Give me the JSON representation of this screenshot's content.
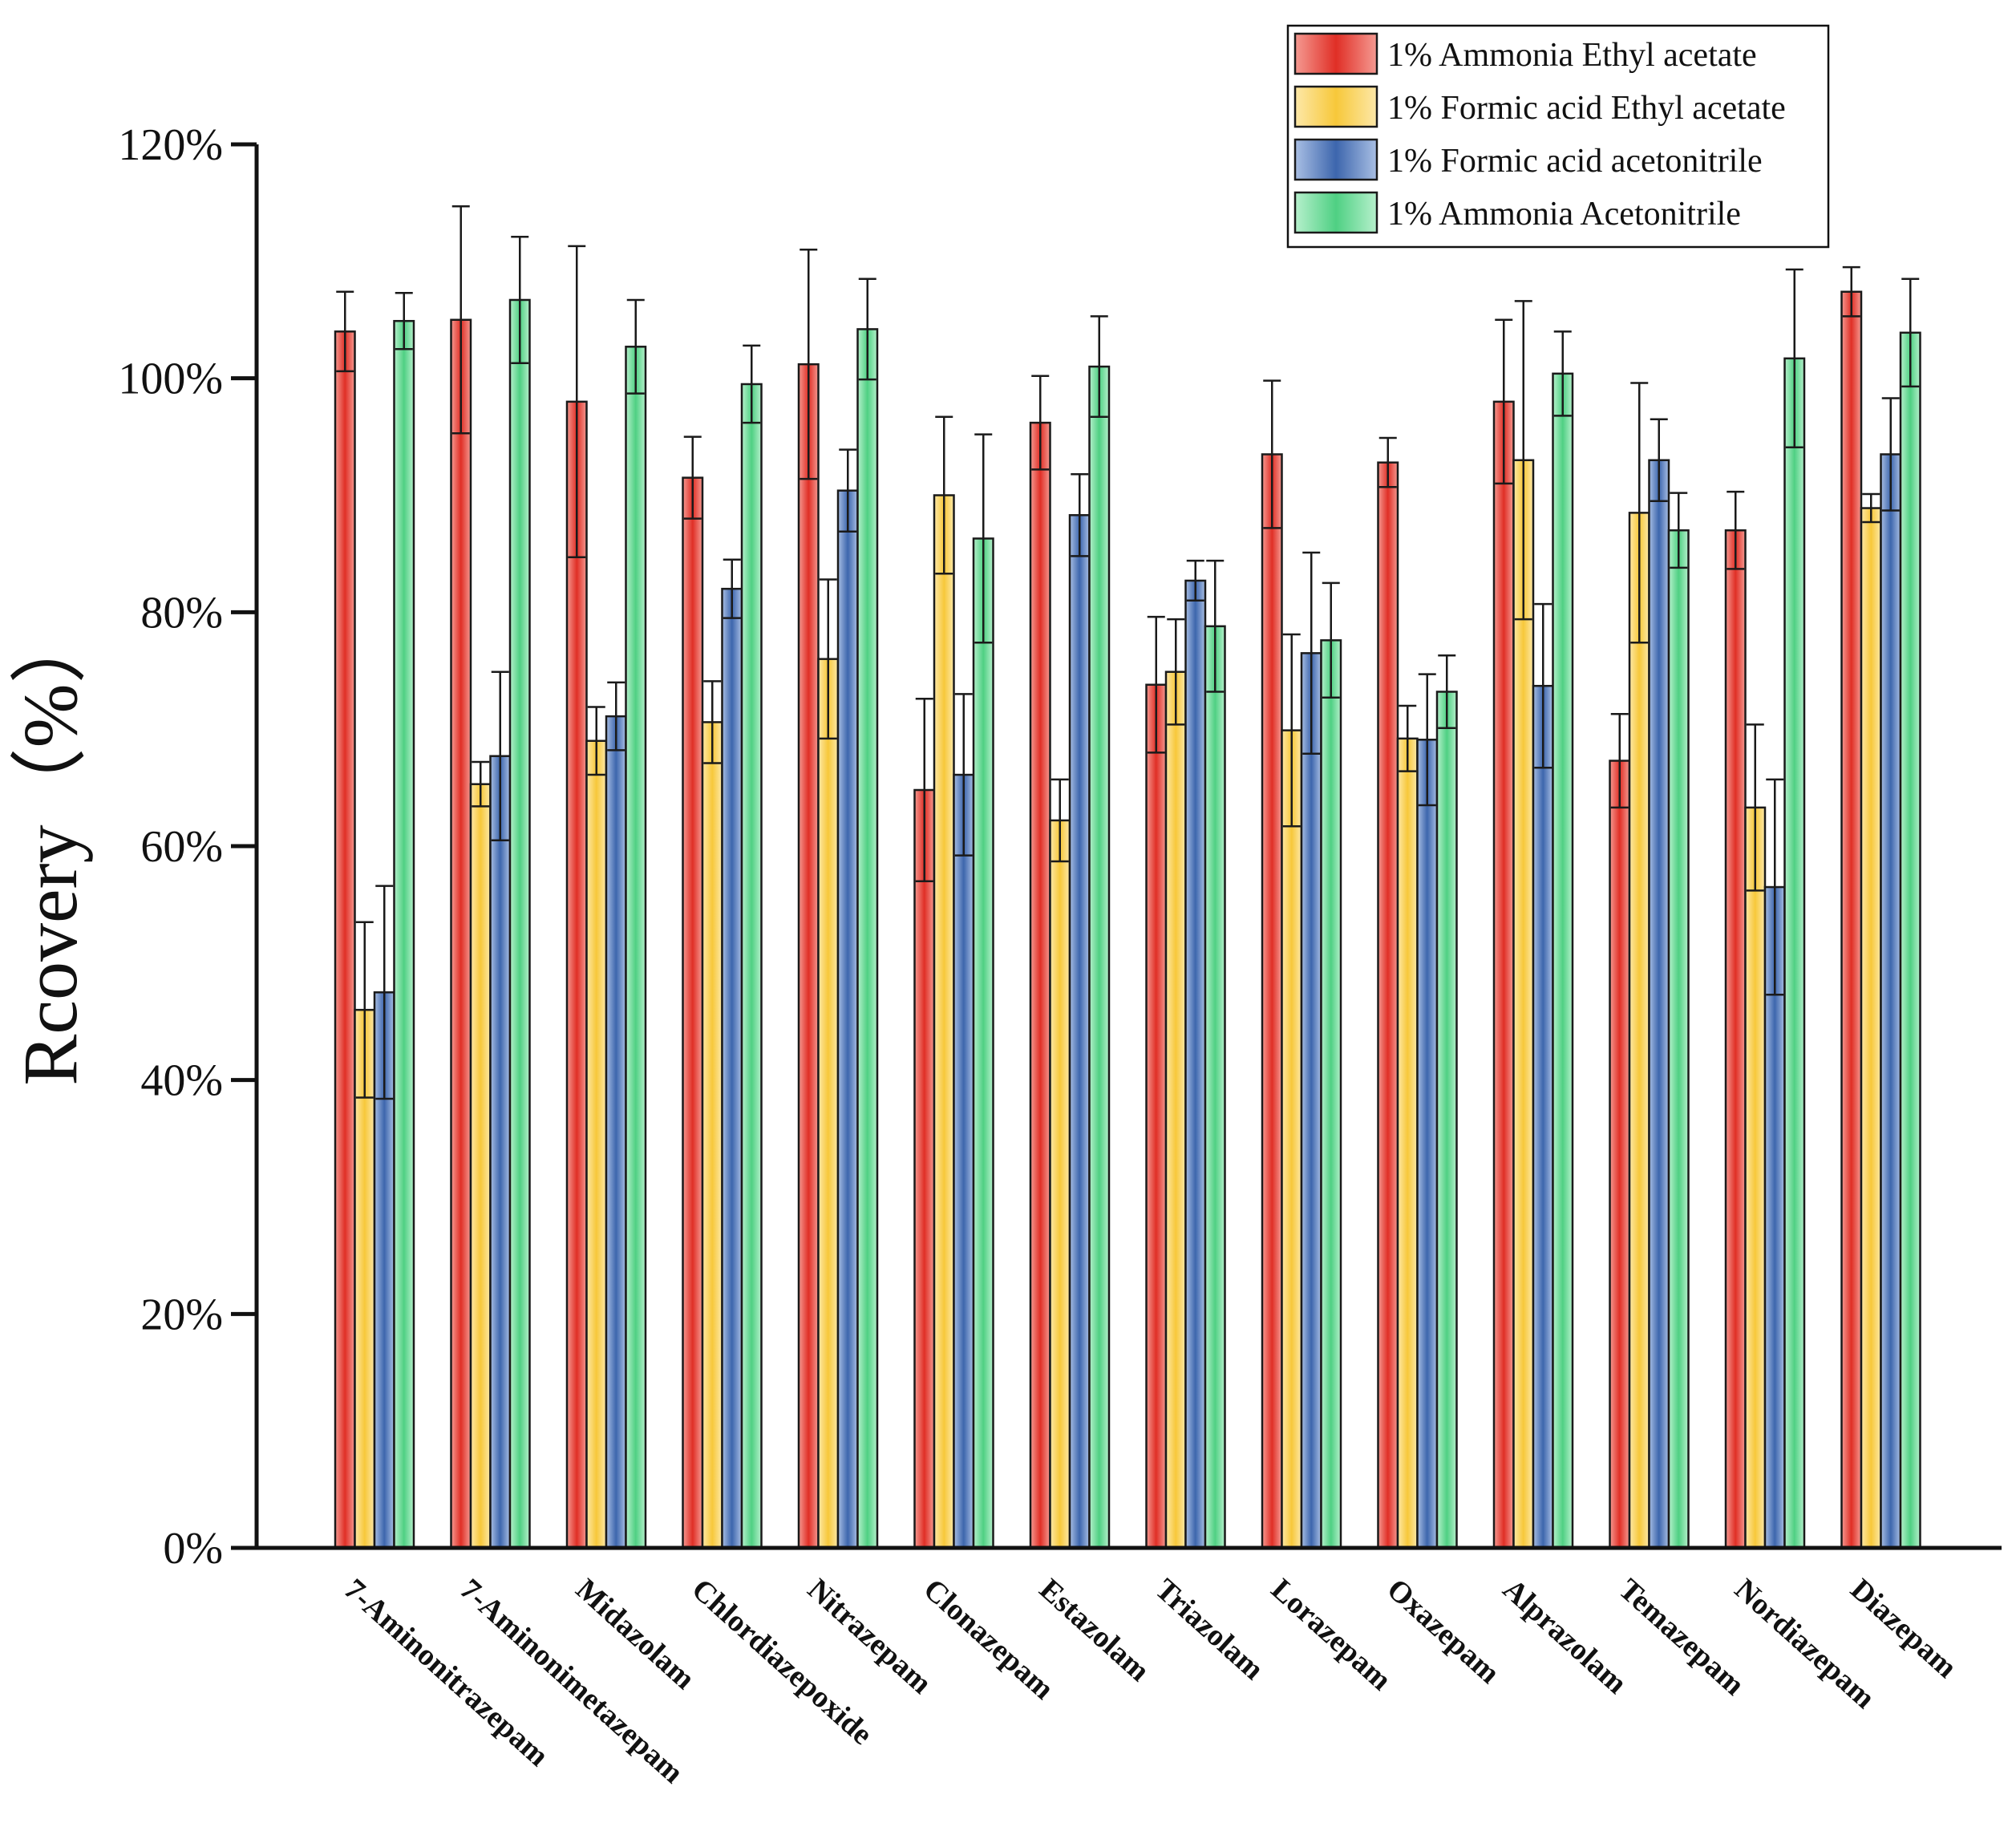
{
  "chart_data": {
    "type": "bar",
    "title": "",
    "xlabel": "",
    "ylabel": "Rcovery（%）",
    "ylim": [
      0,
      120
    ],
    "yticks": [
      0,
      20,
      40,
      60,
      80,
      100,
      120
    ],
    "ytick_labels": [
      "0%",
      "20%",
      "40%",
      "60%",
      "80%",
      "100%",
      "120%"
    ],
    "grid": false,
    "legend_position": "top-right",
    "categories": [
      "7-Aminonitrazepam",
      "7-Aminonimetazepam",
      "Midazolam",
      "Chlordiazepoxide",
      "Nitrazepam",
      "Clonazepam",
      "Estazolam",
      "Triazolam",
      "Lorazepam",
      "Oxazepam",
      "Alprazolam",
      "Temazepam",
      "Nordiazepam",
      "Diazepam"
    ],
    "series": [
      {
        "name": "1% Ammonia Ethyl acetate",
        "color": "#e8403a",
        "values": [
          104.0,
          105.0,
          98.0,
          91.5,
          101.2,
          64.8,
          96.2,
          73.8,
          93.5,
          92.8,
          98.0,
          67.3,
          87.0,
          107.4
        ],
        "errors": [
          3.4,
          9.7,
          13.3,
          3.5,
          9.8,
          7.8,
          4.0,
          5.8,
          6.3,
          2.1,
          7.0,
          4.0,
          3.3,
          2.1
        ]
      },
      {
        "name": "1% Formic acid Ethyl acetate",
        "color": "#f5c842",
        "values": [
          46.0,
          65.3,
          69.0,
          70.6,
          76.0,
          90.0,
          62.2,
          74.9,
          69.9,
          69.2,
          93.0,
          88.5,
          63.3,
          88.9
        ],
        "errors": [
          7.5,
          1.9,
          2.9,
          3.5,
          6.8,
          6.7,
          3.5,
          4.5,
          8.2,
          2.8,
          13.6,
          11.1,
          7.1,
          1.2
        ]
      },
      {
        "name": "1% Formic acid acetonitrile",
        "color": "#4a72b8",
        "values": [
          47.5,
          67.7,
          71.1,
          82.0,
          90.4,
          66.1,
          88.3,
          82.7,
          76.5,
          69.1,
          73.7,
          93.0,
          56.5,
          93.5
        ],
        "errors": [
          9.1,
          7.2,
          2.9,
          2.5,
          3.5,
          6.9,
          3.5,
          1.7,
          8.6,
          5.6,
          7.0,
          3.5,
          9.2,
          4.8
        ]
      },
      {
        "name": "1% Ammonia Acetonitrile",
        "color": "#5cd68e",
        "values": [
          104.9,
          106.7,
          102.7,
          99.5,
          104.2,
          86.3,
          101.0,
          78.8,
          77.6,
          73.2,
          100.4,
          87.0,
          101.7,
          103.9
        ],
        "errors": [
          2.4,
          5.4,
          4.0,
          3.3,
          4.3,
          8.9,
          4.3,
          5.6,
          4.9,
          3.1,
          3.6,
          3.2,
          7.6,
          4.6
        ]
      }
    ]
  }
}
